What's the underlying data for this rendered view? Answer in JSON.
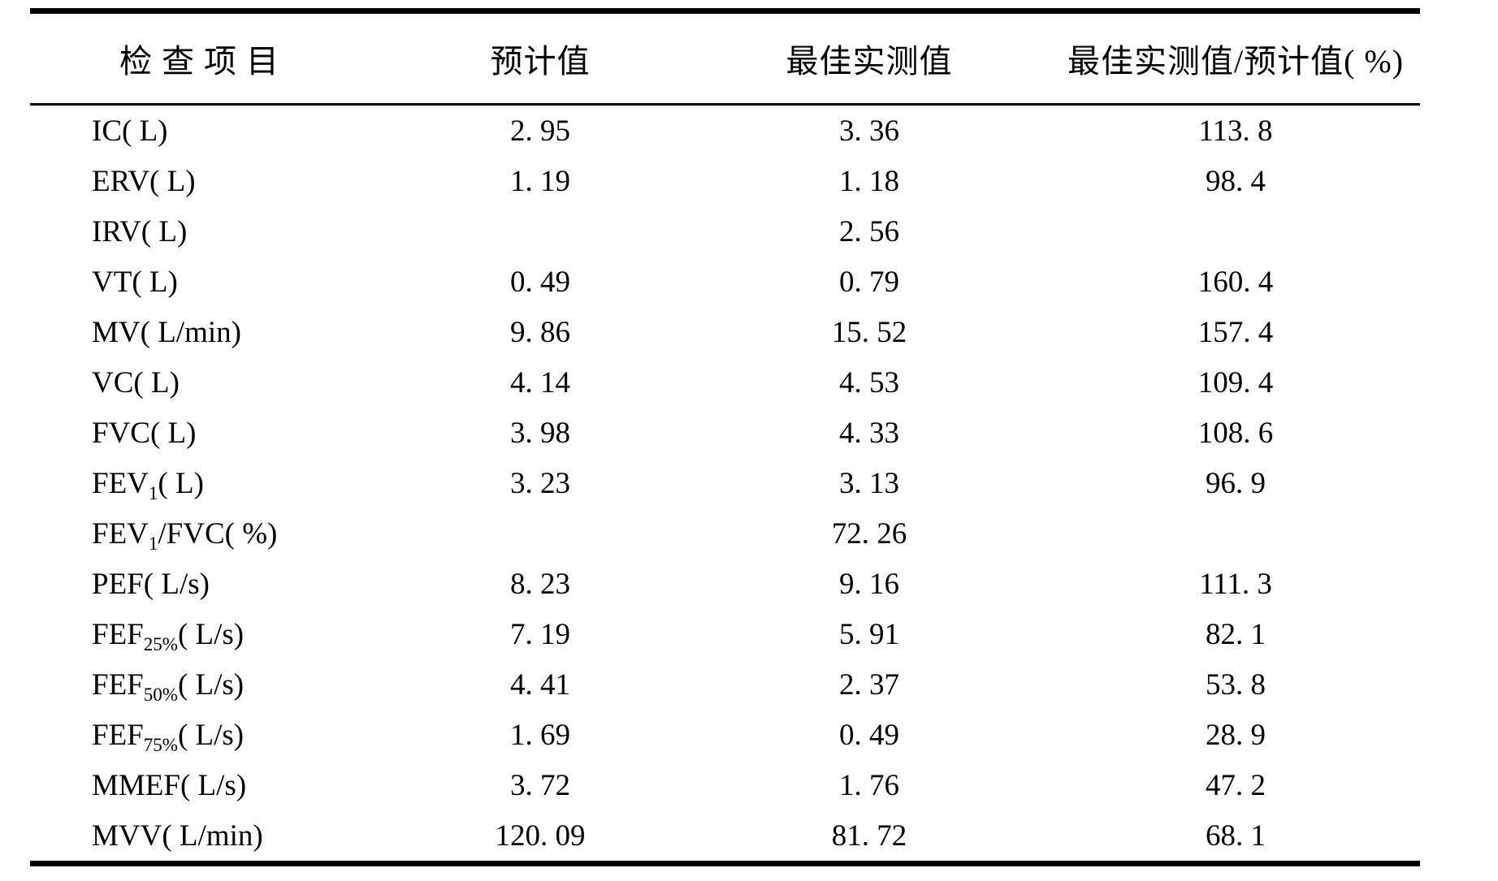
{
  "table": {
    "columns": [
      {
        "label": "检 查 项 目"
      },
      {
        "label": "预计值"
      },
      {
        "label": "最佳实测值"
      },
      {
        "label": "最佳实测值/预计值( %)"
      }
    ],
    "rows": [
      {
        "item": {
          "pre": "IC",
          "sub": "",
          "post": "( L)"
        },
        "predicted": "2. 95",
        "measured": "3. 36",
        "ratio": "113. 8"
      },
      {
        "item": {
          "pre": "ERV",
          "sub": "",
          "post": "( L)"
        },
        "predicted": "1. 19",
        "measured": "1. 18",
        "ratio": "98. 4"
      },
      {
        "item": {
          "pre": "IRV",
          "sub": "",
          "post": "( L)"
        },
        "predicted": "",
        "measured": "2. 56",
        "ratio": ""
      },
      {
        "item": {
          "pre": "VT",
          "sub": "",
          "post": "( L)"
        },
        "predicted": "0. 49",
        "measured": "0. 79",
        "ratio": "160. 4"
      },
      {
        "item": {
          "pre": "MV",
          "sub": "",
          "post": "( L/min)"
        },
        "predicted": "9. 86",
        "measured": "15. 52",
        "ratio": "157. 4"
      },
      {
        "item": {
          "pre": "VC",
          "sub": "",
          "post": "( L)"
        },
        "predicted": "4. 14",
        "measured": "4. 53",
        "ratio": "109. 4"
      },
      {
        "item": {
          "pre": "FVC",
          "sub": "",
          "post": "( L)"
        },
        "predicted": "3. 98",
        "measured": "4. 33",
        "ratio": "108. 6"
      },
      {
        "item": {
          "pre": "FEV",
          "sub": "1",
          "post": "( L)"
        },
        "predicted": "3. 23",
        "measured": "3. 13",
        "ratio": "96. 9"
      },
      {
        "item": {
          "pre": "FEV",
          "sub": "1",
          "post": "/FVC( %)"
        },
        "predicted": "",
        "measured": "72. 26",
        "ratio": ""
      },
      {
        "item": {
          "pre": "PEF",
          "sub": "",
          "post": "( L/s)"
        },
        "predicted": "8. 23",
        "measured": "9. 16",
        "ratio": "111. 3"
      },
      {
        "item": {
          "pre": "FEF",
          "sub": "25%",
          "post": "( L/s)"
        },
        "predicted": "7. 19",
        "measured": "5. 91",
        "ratio": "82. 1"
      },
      {
        "item": {
          "pre": "FEF",
          "sub": "50%",
          "post": "( L/s)"
        },
        "predicted": "4. 41",
        "measured": "2. 37",
        "ratio": "53. 8"
      },
      {
        "item": {
          "pre": "FEF",
          "sub": "75%",
          "post": "( L/s)"
        },
        "predicted": "1. 69",
        "measured": "0. 49",
        "ratio": "28. 9"
      },
      {
        "item": {
          "pre": "MMEF",
          "sub": "",
          "post": "( L/s)"
        },
        "predicted": "3. 72",
        "measured": "1. 76",
        "ratio": "47. 2"
      },
      {
        "item": {
          "pre": "MVV",
          "sub": "",
          "post": "( L/min)"
        },
        "predicted": "120. 09",
        "measured": "81. 72",
        "ratio": "68. 1"
      }
    ]
  }
}
